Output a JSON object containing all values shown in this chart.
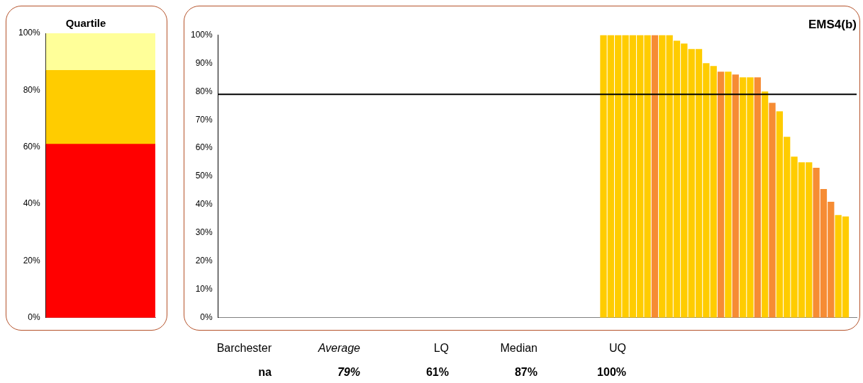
{
  "chart_data": [
    {
      "type": "bar",
      "title": "Quartile",
      "categories": [
        null
      ],
      "stacked": true,
      "series": [
        {
          "color": "#ff0000",
          "values": [
            61
          ]
        },
        {
          "color": "#ffcc00",
          "values": [
            26
          ]
        },
        {
          "color": "#ffff99",
          "values": [
            13
          ]
        }
      ],
      "ylim": [
        0,
        100
      ],
      "yticks": [
        {
          "value": 0,
          "label": "0%"
        },
        {
          "value": 20,
          "label": "20%"
        },
        {
          "value": 40,
          "label": "40%"
        },
        {
          "value": 60,
          "label": "60%"
        },
        {
          "value": 80,
          "label": "80%"
        },
        {
          "value": 100,
          "label": "100%"
        }
      ],
      "tick_labels": "y",
      "grid": false,
      "legend": false
    },
    {
      "type": "bar",
      "title": "EMS4(b)",
      "categories": [
        null,
        null,
        null,
        null,
        null,
        null,
        null,
        null,
        null,
        null,
        null,
        null,
        null,
        null,
        null,
        null,
        null,
        null,
        null,
        null,
        null,
        null,
        null,
        null,
        null,
        null,
        null,
        null,
        null,
        null,
        null,
        null,
        null,
        null,
        null,
        null,
        null,
        null,
        null,
        null,
        null,
        null,
        null,
        null,
        null,
        null,
        null,
        null,
        null,
        null,
        null,
        null,
        null,
        null,
        null,
        null,
        null,
        null,
        null,
        null,
        null,
        null,
        null,
        null,
        null,
        null,
        null,
        null,
        null,
        null,
        null,
        null,
        null,
        null,
        null,
        null,
        null,
        null,
        null,
        null,
        null,
        null,
        null,
        null,
        null,
        null,
        null
      ],
      "values": [
        null,
        null,
        null,
        null,
        null,
        null,
        null,
        null,
        null,
        null,
        null,
        null,
        null,
        null,
        null,
        null,
        null,
        null,
        null,
        null,
        null,
        null,
        null,
        null,
        null,
        null,
        null,
        null,
        null,
        null,
        null,
        null,
        null,
        null,
        null,
        null,
        null,
        null,
        null,
        null,
        null,
        null,
        null,
        null,
        null,
        null,
        null,
        null,
        null,
        null,
        null,
        null,
        100,
        100,
        100,
        100,
        100,
        100,
        100,
        100,
        100,
        100,
        98,
        97,
        95,
        95,
        90,
        89,
        87,
        87,
        86,
        85,
        85,
        85,
        80,
        76,
        73,
        64,
        57,
        55,
        55,
        53,
        45.5,
        41,
        36.3,
        35.8,
        null
      ],
      "colors": [
        null,
        null,
        null,
        null,
        null,
        null,
        null,
        null,
        null,
        null,
        null,
        null,
        null,
        null,
        null,
        null,
        null,
        null,
        null,
        null,
        null,
        null,
        null,
        null,
        null,
        null,
        null,
        null,
        null,
        null,
        null,
        null,
        null,
        null,
        null,
        null,
        null,
        null,
        null,
        null,
        null,
        null,
        null,
        null,
        null,
        null,
        null,
        null,
        null,
        null,
        null,
        null,
        "#ffcc00",
        "#ffcc00",
        "#ffcc00",
        "#ffcc00",
        "#ffcc00",
        "#ffcc00",
        "#ffcc00",
        "#f68c34",
        "#ffcc00",
        "#ffcc00",
        "#ffcc00",
        "#ffcc00",
        "#ffcc00",
        "#ffcc00",
        "#ffcc00",
        "#ffcc00",
        "#f68c34",
        "#ffcc00",
        "#f68c34",
        "#ffcc00",
        "#ffcc00",
        "#f68c34",
        "#ffcc00",
        "#f68c34",
        "#ffcc00",
        "#ffcc00",
        "#ffcc00",
        "#ffcc00",
        "#ffcc00",
        "#f68c34",
        "#f68c34",
        "#f68c34",
        "#ffcc00",
        "#ffcc00",
        null
      ],
      "ylim": [
        0,
        100
      ],
      "yticks": [
        {
          "value": 0,
          "label": "0%"
        },
        {
          "value": 10,
          "label": "10%"
        },
        {
          "value": 20,
          "label": "20%"
        },
        {
          "value": 30,
          "label": "30%"
        },
        {
          "value": 40,
          "label": "40%"
        },
        {
          "value": 50,
          "label": "50%"
        },
        {
          "value": 60,
          "label": "60%"
        },
        {
          "value": 70,
          "label": "70%"
        },
        {
          "value": 80,
          "label": "80%"
        },
        {
          "value": 90,
          "label": "90%"
        },
        {
          "value": 100,
          "label": "100%"
        }
      ],
      "ref_lines": [
        {
          "axis": "y",
          "value": 79,
          "color": "#000000"
        }
      ],
      "tick_labels": "y",
      "grid": false,
      "legend": false,
      "annotations": [
        "Barchester",
        "Average",
        "LQ",
        "Median",
        "UQ",
        "na",
        "79%",
        "61%",
        "87%",
        "100%"
      ]
    }
  ]
}
